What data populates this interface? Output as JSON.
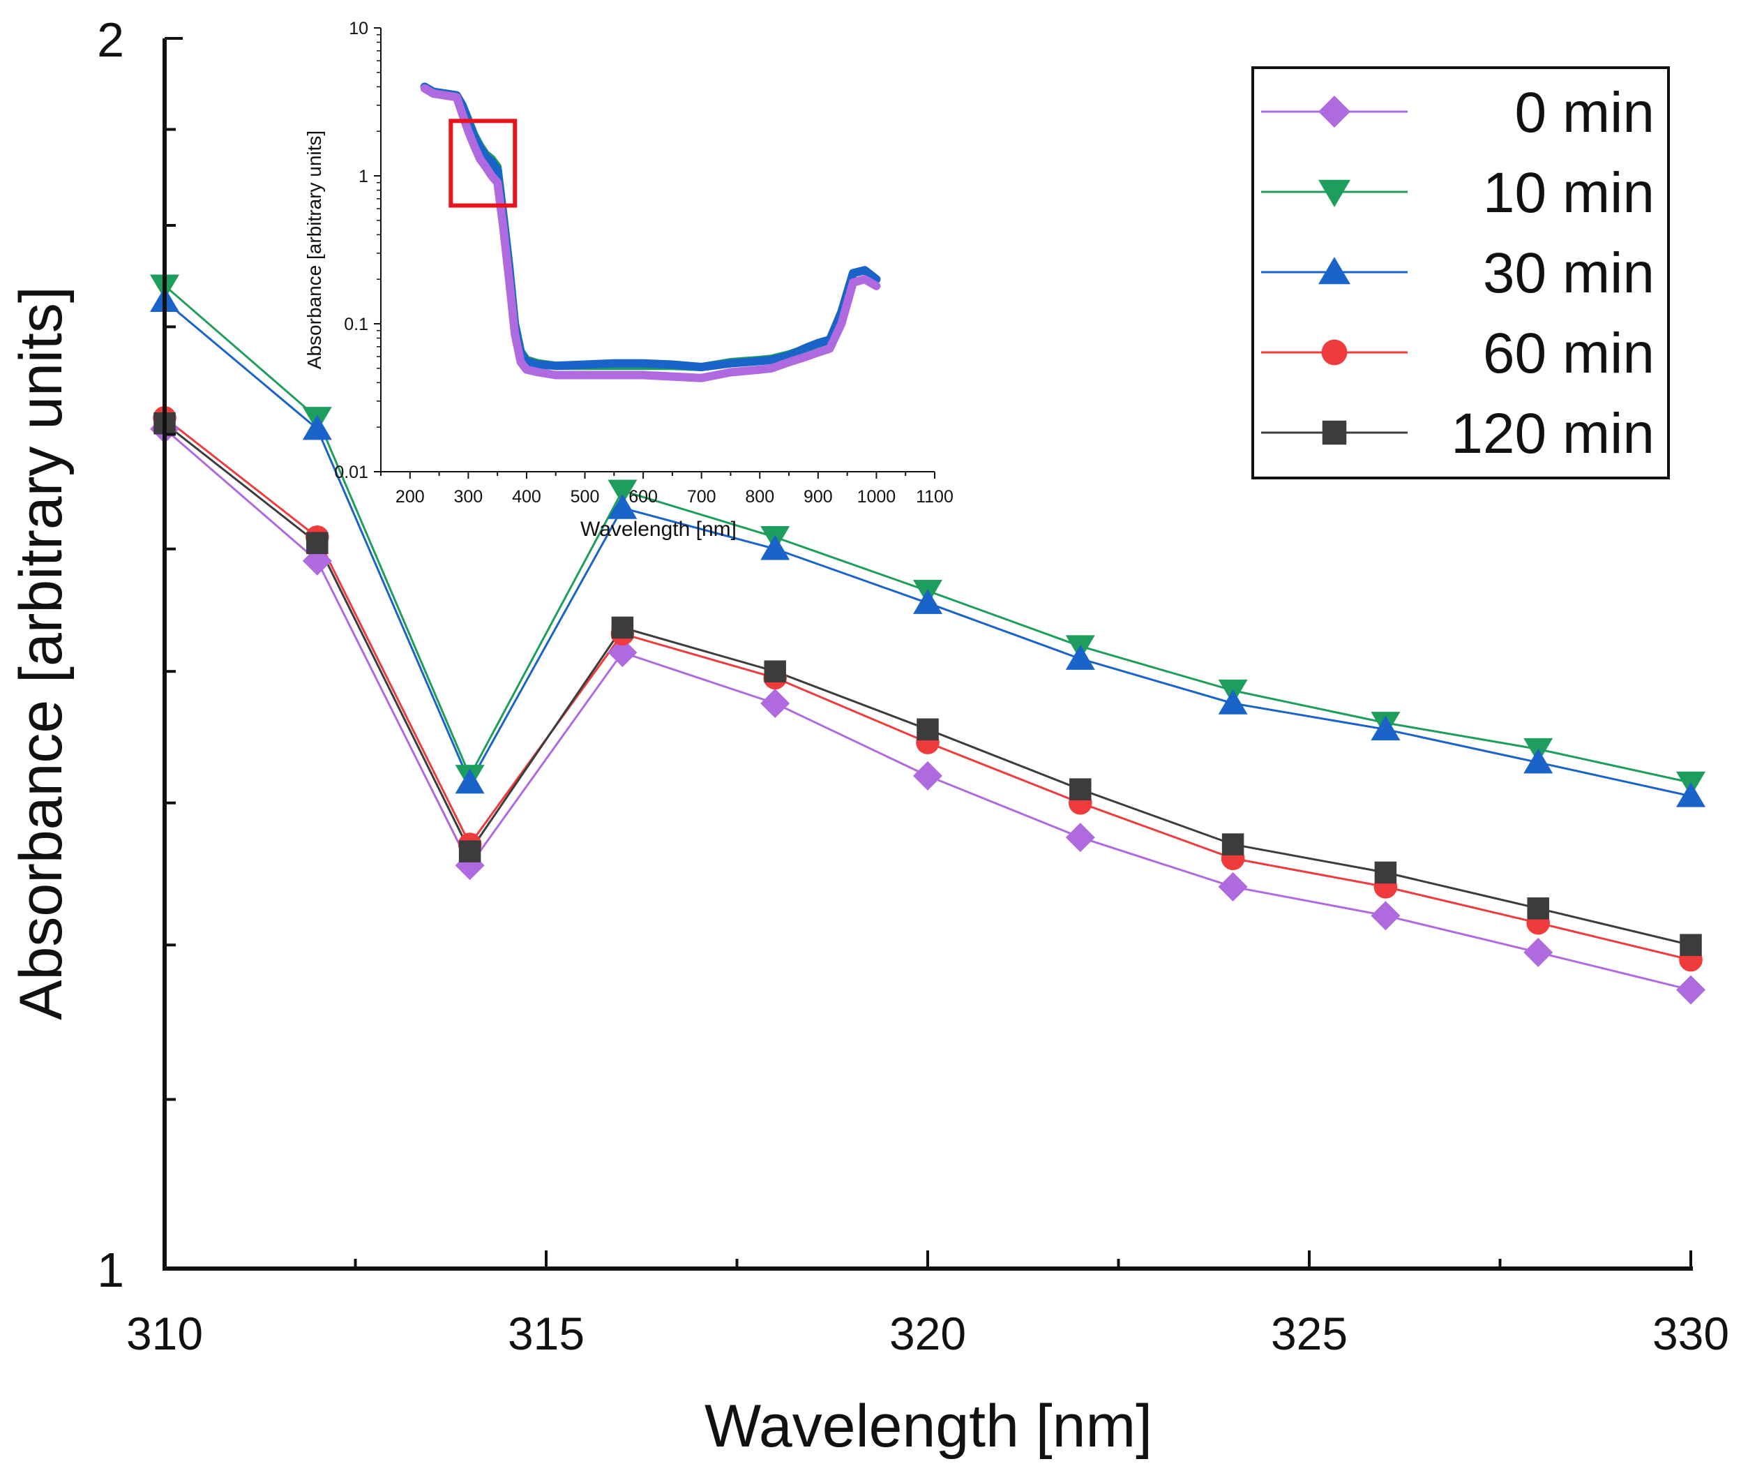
{
  "chart_data": [
    {
      "id": "main",
      "type": "line",
      "title": "",
      "xlabel": "Wavelength [nm]",
      "ylabel": "Absorbance [arbitrary units]",
      "yscale": "log",
      "xlim": [
        310,
        330
      ],
      "ylim": [
        1,
        2
      ],
      "x_ticks": [
        "310",
        "315",
        "320",
        "325",
        "330"
      ],
      "y_ticks": [
        "1",
        "2"
      ],
      "legend_position": "top-right",
      "x": [
        310,
        312,
        314,
        316,
        318,
        320,
        322,
        324,
        326,
        328,
        330
      ],
      "series": [
        {
          "name": "0 min",
          "color": "#b06adf",
          "marker": "diamond",
          "values": [
            1.605,
            1.49,
            1.255,
            1.415,
            1.375,
            1.32,
            1.275,
            1.24,
            1.22,
            1.195,
            1.17
          ]
        },
        {
          "name": "10 min",
          "color": "#1e9e5c",
          "marker": "triangle-down",
          "values": [
            1.74,
            1.615,
            1.32,
            1.55,
            1.51,
            1.465,
            1.42,
            1.385,
            1.36,
            1.34,
            1.315
          ]
        },
        {
          "name": "30 min",
          "color": "#1a63c9",
          "marker": "triangle-up",
          "values": [
            1.725,
            1.605,
            1.315,
            1.535,
            1.5,
            1.455,
            1.41,
            1.375,
            1.355,
            1.33,
            1.305
          ]
        },
        {
          "name": "60 min",
          "color": "#ef3b3b",
          "marker": "circle",
          "values": [
            1.615,
            1.51,
            1.27,
            1.43,
            1.395,
            1.345,
            1.3,
            1.26,
            1.24,
            1.215,
            1.19
          ]
        },
        {
          "name": "120 min",
          "color": "#3c3c3c",
          "marker": "square",
          "values": [
            1.61,
            1.505,
            1.265,
            1.435,
            1.4,
            1.355,
            1.31,
            1.27,
            1.25,
            1.225,
            1.2
          ]
        }
      ]
    },
    {
      "id": "inset",
      "type": "line",
      "title": "",
      "xlabel": "Wavelength [nm]",
      "ylabel": "Absorbance [arbitrary units]",
      "yscale": "log",
      "xlim": [
        150,
        1100
      ],
      "ylim": [
        0.01,
        10
      ],
      "x_ticks": [
        "200",
        "300",
        "400",
        "500",
        "600",
        "700",
        "800",
        "900",
        "1000",
        "1100"
      ],
      "y_ticks": [
        "0.01",
        "0.1",
        "1",
        "10"
      ],
      "highlight_box": {
        "x_range": [
          270,
          380
        ],
        "y_range": [
          0.63,
          2.35
        ],
        "color": "#e8141c"
      },
      "series": [
        {
          "name": "10 min",
          "color": "#1e9e5c",
          "x": [
            225,
            240,
            260,
            280,
            290,
            300,
            310,
            320,
            330,
            340,
            350,
            360,
            370,
            380,
            390,
            400,
            420,
            450,
            500,
            550,
            600,
            650,
            700,
            750,
            800,
            820,
            850,
            880,
            900,
            920,
            940,
            960,
            980,
            1000
          ],
          "values": [
            4.0,
            3.7,
            3.6,
            3.5,
            3.0,
            2.4,
            1.9,
            1.6,
            1.4,
            1.3,
            1.15,
            0.55,
            0.25,
            0.1,
            0.065,
            0.057,
            0.054,
            0.052,
            0.052,
            0.052,
            0.052,
            0.052,
            0.051,
            0.055,
            0.057,
            0.058,
            0.062,
            0.068,
            0.072,
            0.076,
            0.12,
            0.22,
            0.23,
            0.2
          ]
        },
        {
          "name": "30 min",
          "color": "#1a63c9",
          "x": [
            225,
            240,
            260,
            280,
            290,
            300,
            310,
            320,
            330,
            340,
            350,
            360,
            370,
            380,
            390,
            400,
            420,
            450,
            500,
            550,
            600,
            650,
            700,
            750,
            800,
            820,
            850,
            880,
            900,
            920,
            940,
            960,
            980,
            1000
          ],
          "values": [
            4.0,
            3.7,
            3.6,
            3.5,
            3.0,
            2.35,
            1.85,
            1.55,
            1.35,
            1.25,
            1.1,
            0.52,
            0.24,
            0.098,
            0.063,
            0.056,
            0.053,
            0.052,
            0.053,
            0.054,
            0.054,
            0.053,
            0.051,
            0.054,
            0.056,
            0.057,
            0.061,
            0.069,
            0.074,
            0.078,
            0.12,
            0.22,
            0.23,
            0.2
          ]
        },
        {
          "name": "0 min",
          "color": "#b06adf",
          "x": [
            225,
            240,
            260,
            280,
            290,
            300,
            310,
            320,
            330,
            340,
            350,
            360,
            370,
            380,
            390,
            400,
            420,
            450,
            500,
            550,
            600,
            650,
            700,
            750,
            800,
            820,
            850,
            880,
            900,
            920,
            940,
            960,
            980,
            1000
          ],
          "values": [
            3.9,
            3.6,
            3.5,
            3.4,
            2.6,
            2.0,
            1.6,
            1.3,
            1.15,
            1.0,
            0.9,
            0.45,
            0.2,
            0.085,
            0.055,
            0.049,
            0.047,
            0.045,
            0.045,
            0.045,
            0.045,
            0.044,
            0.043,
            0.047,
            0.049,
            0.05,
            0.055,
            0.06,
            0.064,
            0.068,
            0.1,
            0.19,
            0.2,
            0.18
          ]
        }
      ]
    }
  ]
}
